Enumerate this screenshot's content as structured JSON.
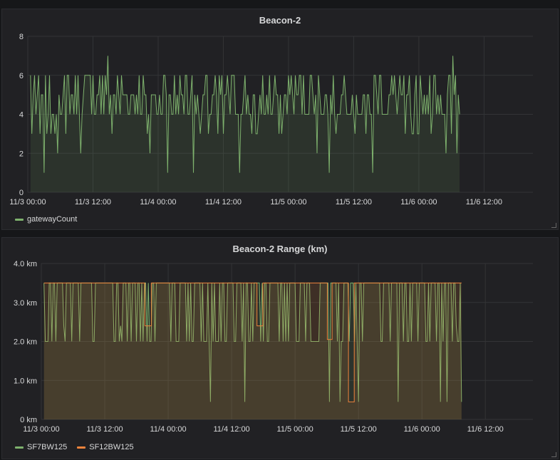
{
  "chart_data": [
    {
      "type": "line",
      "title": "Beacon-2",
      "x": {
        "ticks": [
          "11/3 00:00",
          "11/3 12:00",
          "11/4 00:00",
          "11/4 12:00",
          "11/5 00:00",
          "11/5 12:00",
          "11/6 00:00",
          "11/6 12:00"
        ],
        "tick_hours": [
          0,
          12,
          24,
          36,
          48,
          60,
          72,
          84
        ],
        "range_hours": [
          0,
          93
        ]
      },
      "y": {
        "ticks": [
          "0",
          "2",
          "4",
          "6",
          "8"
        ],
        "tick_values": [
          0,
          2,
          4,
          6,
          8
        ],
        "ylim": [
          0,
          8
        ]
      },
      "grid": true,
      "legend_position": "bottom-left",
      "series": [
        {
          "name": "gatewayCount",
          "color": "#7eb26d",
          "fill": true,
          "data_hours": [
            0.5,
            79.5
          ],
          "baseline_band": [
            4,
            5
          ],
          "typical_high": 6,
          "typical_low": 3,
          "points": [
            [
              0.5,
              6
            ],
            [
              0.8,
              3
            ],
            [
              1.2,
              6
            ],
            [
              2.0,
              6
            ],
            [
              3.1,
              1
            ],
            [
              4.0,
              6
            ],
            [
              5.5,
              2
            ],
            [
              6.7,
              6
            ],
            [
              9.8,
              2
            ],
            [
              11.9,
              6
            ],
            [
              13.2,
              6
            ],
            [
              14.8,
              7
            ],
            [
              15.6,
              3
            ],
            [
              17.3,
              6
            ],
            [
              22.4,
              2
            ],
            [
              25.8,
              1
            ],
            [
              29.0,
              6
            ],
            [
              30.5,
              1
            ],
            [
              35.7,
              6
            ],
            [
              38.9,
              1
            ],
            [
              41.2,
              3
            ],
            [
              45.5,
              6
            ],
            [
              48.0,
              6
            ],
            [
              53.3,
              2
            ],
            [
              55.5,
              1
            ],
            [
              58.3,
              6
            ],
            [
              60.5,
              5
            ],
            [
              63.4,
              1
            ],
            [
              68.5,
              6
            ],
            [
              70.8,
              3
            ],
            [
              74.1,
              6
            ],
            [
              77.0,
              2
            ],
            [
              78.3,
              7
            ],
            [
              79.0,
              2
            ],
            [
              79.5,
              4
            ]
          ]
        }
      ]
    },
    {
      "type": "line",
      "title": "Beacon-2 Range (km)",
      "x": {
        "ticks": [
          "11/3 00:00",
          "11/3 12:00",
          "11/4 00:00",
          "11/4 12:00",
          "11/5 00:00",
          "11/5 12:00",
          "11/6 00:00",
          "11/6 12:00"
        ],
        "tick_hours": [
          0,
          12,
          24,
          36,
          48,
          60,
          72,
          84
        ],
        "range_hours": [
          0,
          93
        ]
      },
      "y": {
        "ticks": [
          "0 km",
          "1.0 km",
          "2.0 km",
          "3.0 km",
          "4.0 km"
        ],
        "tick_values": [
          0,
          1,
          2,
          3,
          4
        ],
        "ylim": [
          0,
          4
        ]
      },
      "grid": true,
      "legend_position": "bottom-left",
      "series": [
        {
          "name": "SF7BW125",
          "color": "#7eb26d",
          "fill": true,
          "data_hours": [
            0.5,
            79.5
          ],
          "typical_high": 3.5,
          "typical_low": 2.0,
          "points": [
            [
              0.5,
              3.5
            ],
            [
              1.0,
              2.0
            ],
            [
              4.3,
              2.4
            ],
            [
              10.0,
              2.0
            ],
            [
              15.0,
              2.4
            ],
            [
              20.0,
              2.0
            ],
            [
              31.9,
              0.45
            ],
            [
              38.5,
              0.45
            ],
            [
              42.0,
              2.0
            ],
            [
              54.5,
              0.45
            ],
            [
              56.5,
              0.45
            ],
            [
              60.0,
              0.45
            ],
            [
              64.5,
              2.0
            ],
            [
              67.5,
              0.45
            ],
            [
              73.0,
              2.0
            ],
            [
              75.5,
              0.45
            ],
            [
              76.8,
              0.45
            ],
            [
              78.5,
              2.4
            ],
            [
              79.5,
              0.45
            ]
          ]
        },
        {
          "name": "SF12BW125",
          "color": "#ef843c",
          "fill": true,
          "data_hours": [
            0.5,
            79.5
          ],
          "typical_high": 3.5,
          "steps": [
            [
              19.6,
              20.8,
              2.4
            ],
            [
              40.8,
              41.9,
              2.4
            ],
            [
              54.1,
              55.0,
              2.05
            ],
            [
              58.1,
              59.2,
              0.45
            ]
          ]
        }
      ]
    }
  ]
}
